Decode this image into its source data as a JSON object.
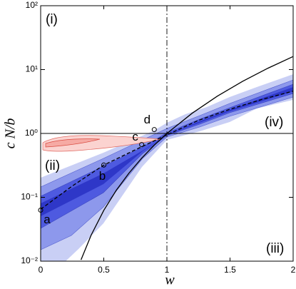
{
  "chart_data": {
    "type": "line",
    "x_label": "w",
    "y_label": "c N/b",
    "xlim": [
      0,
      2
    ],
    "ylim": [
      0.01,
      100
    ],
    "yscale": "log",
    "xticks": [
      0,
      0.5,
      1,
      1.5,
      2
    ],
    "yticks": [
      {
        "value": 0.01,
        "label": "10⁻²"
      },
      {
        "value": 0.1,
        "label": "10⁻¹"
      },
      {
        "value": 1,
        "label": "10⁰"
      },
      {
        "value": 10,
        "label": "10¹"
      },
      {
        "value": 100,
        "label": "10²"
      }
    ],
    "hline": 1,
    "vline": 1,
    "series": [
      {
        "color": "#000000",
        "dash": "solid",
        "x": [
          0.32,
          0.4,
          0.5,
          0.6,
          0.7,
          0.8,
          0.9,
          1,
          1.2,
          1.4,
          1.6,
          1.8,
          2
        ],
        "values": [
          0.0105,
          0.0256,
          0.0625,
          0.1296,
          0.2401,
          0.4096,
          0.6561,
          1,
          2.0736,
          3.8416,
          6.5536,
          10.4976,
          16
        ]
      },
      {
        "color": "#000000",
        "dash": "dashed",
        "x": [
          0,
          0.25,
          0.5,
          0.8,
          1,
          1.25,
          1.5,
          1.75,
          2
        ],
        "values": [
          0.065,
          0.15,
          0.32,
          0.62,
          0.95,
          1.6,
          2.4,
          3.4,
          4.6
        ]
      }
    ],
    "points": [
      {
        "label": "a",
        "x": 0,
        "y": 0.063
      },
      {
        "label": "b",
        "x": 0.5,
        "y": 0.32
      },
      {
        "label": "c",
        "x": 0.8,
        "y": 0.67
      },
      {
        "label": "d",
        "x": 0.9,
        "y": 1.15
      }
    ],
    "region_labels": [
      "(i)",
      "(ii)",
      "(iii)",
      "(iv)"
    ]
  }
}
